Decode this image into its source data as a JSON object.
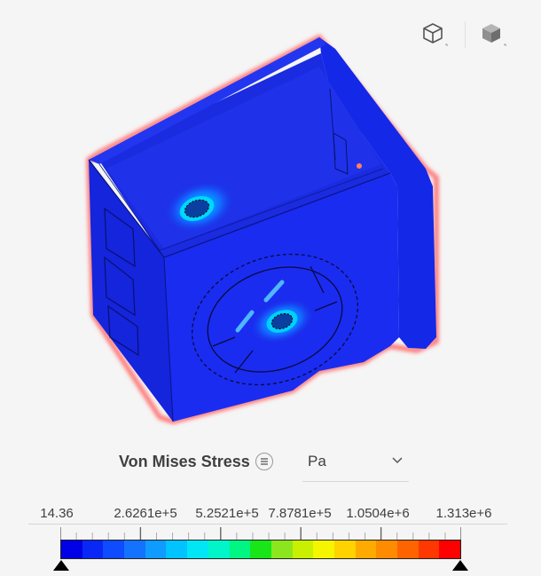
{
  "view_controls": {
    "iso_view_icon": "wireframe-cube-icon",
    "solid_view_icon": "solid-cube-icon"
  },
  "result": {
    "field_name": "Von Mises Stress",
    "menu_icon": "list-menu-icon",
    "unit": "Pa"
  },
  "legend": {
    "tick_labels": [
      "14.36",
      "2.6261e+5",
      "5.2521e+5",
      "7.8781e+5",
      "1.0504e+6",
      "1.313e+6"
    ],
    "colors": [
      "#0000e6",
      "#0a28f5",
      "#0f4bff",
      "#1373ff",
      "#0f9bff",
      "#00c3ff",
      "#00e6f5",
      "#00f5c8",
      "#00f582",
      "#19e619",
      "#8ce61e",
      "#c8f000",
      "#f5f500",
      "#ffd200",
      "#ffaa00",
      "#ff8c00",
      "#ff6400",
      "#ff3700",
      "#ff0000"
    ],
    "accent_outline": "#ff7070",
    "model_color": "#1a2be0"
  }
}
